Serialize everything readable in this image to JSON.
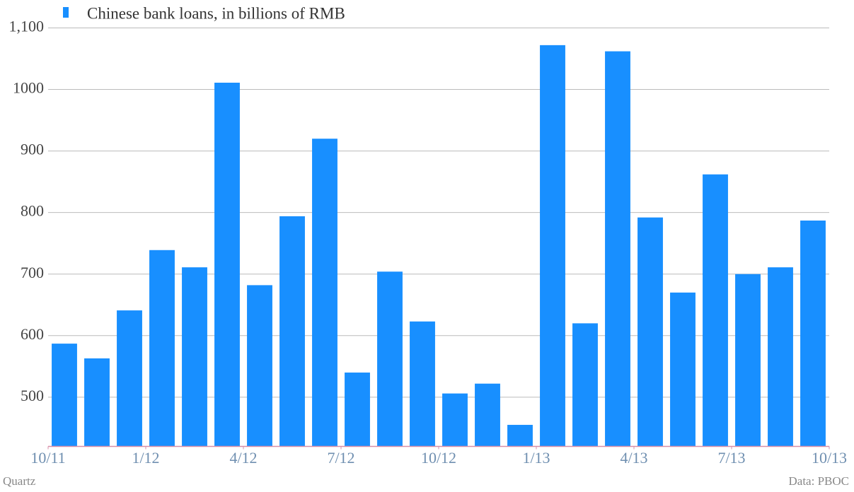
{
  "chart_data": {
    "type": "bar",
    "legend": "Chinese bank loans, in billions of RMB",
    "color": "#188fff",
    "values": [
      587,
      563,
      641,
      739,
      711,
      1011,
      682,
      794,
      920,
      540,
      704,
      623,
      506,
      522,
      455,
      1072,
      620,
      1062,
      792,
      670,
      862,
      700,
      711,
      787
    ],
    "xlim": [
      0,
      24
    ],
    "xticks": [
      {
        "value": 0,
        "label": "10/11"
      },
      {
        "value": 3,
        "label": "1/12"
      },
      {
        "value": 6,
        "label": "4/12"
      },
      {
        "value": 9,
        "label": "7/12"
      },
      {
        "value": 12,
        "label": "10/12"
      },
      {
        "value": 15,
        "label": "1/13"
      },
      {
        "value": 18,
        "label": "4/13"
      },
      {
        "value": 21,
        "label": "7/13"
      },
      {
        "value": 24,
        "label": "10/13"
      }
    ],
    "ylim": [
      420,
      1100
    ],
    "yticks": [
      500,
      600,
      700,
      800,
      900,
      1000,
      {
        "value": 1100,
        "label": "1,100"
      }
    ],
    "grid": true,
    "credit": "Quartz",
    "source": "Data: PBOC"
  }
}
